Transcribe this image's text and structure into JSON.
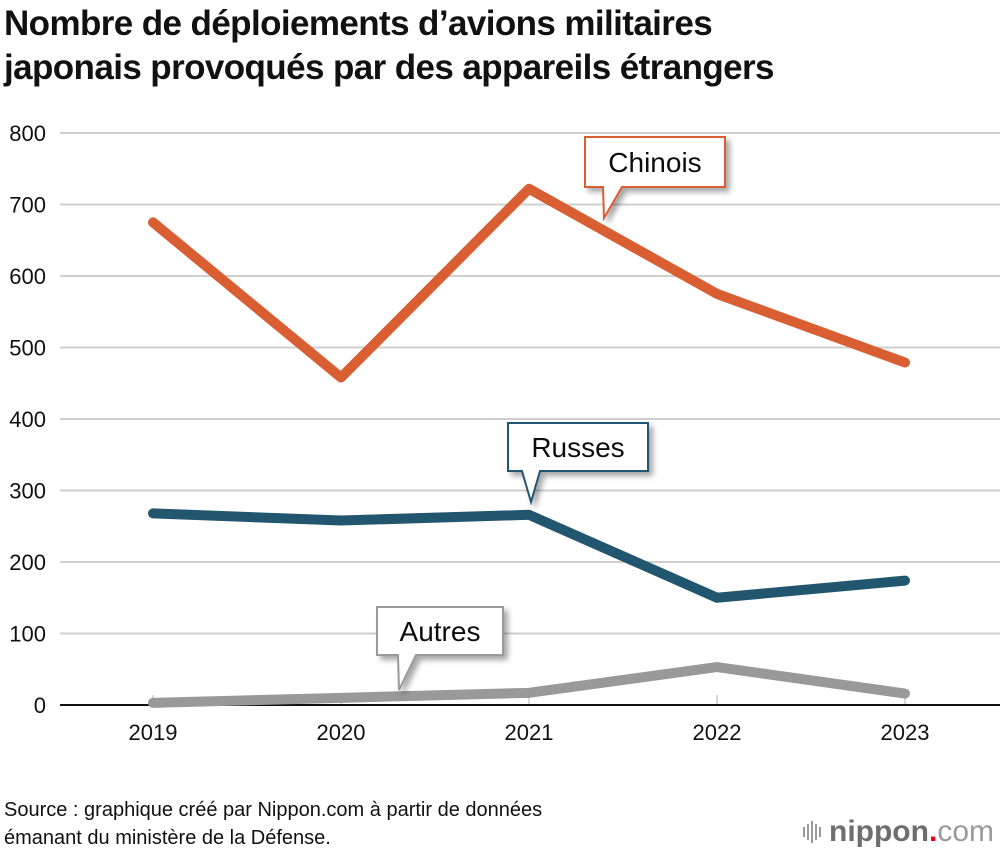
{
  "title_lines": [
    "Nombre de déploiements d’avions militaires",
    "japonais provoqués par des appareils étrangers"
  ],
  "source_lines": [
    "Source : graphique créé par Nippon.com à partir de données",
    "émanant du ministère de la Défense."
  ],
  "logo": {
    "brand": "nippon",
    "dot": ".",
    "suffix": "com",
    "icon": "sound-bars-icon",
    "dot_color": "#e60012"
  },
  "chart_data": {
    "type": "line",
    "title": "Nombre de déploiements d’avions militaires japonais provoqués par des appareils étrangers",
    "xlabel": "",
    "ylabel": "",
    "x": [
      "2019",
      "2020",
      "2021",
      "2022",
      "2023"
    ],
    "ylim": [
      0,
      800
    ],
    "yticks": [
      0,
      100,
      200,
      300,
      400,
      500,
      600,
      700,
      800
    ],
    "grid": true,
    "series": [
      {
        "name": "Chinois",
        "color": "#d95f33",
        "values": [
          675,
          458,
          722,
          575,
          479
        ],
        "label_anchor_index": 2.4
      },
      {
        "name": "Russes",
        "color": "#22566f",
        "values": [
          268,
          258,
          266,
          150,
          174
        ],
        "label_anchor_index": 2.0
      },
      {
        "name": "Autres",
        "color": "#999999",
        "values": [
          3,
          10,
          17,
          53,
          16
        ],
        "label_anchor_index": 1.3
      }
    ]
  }
}
